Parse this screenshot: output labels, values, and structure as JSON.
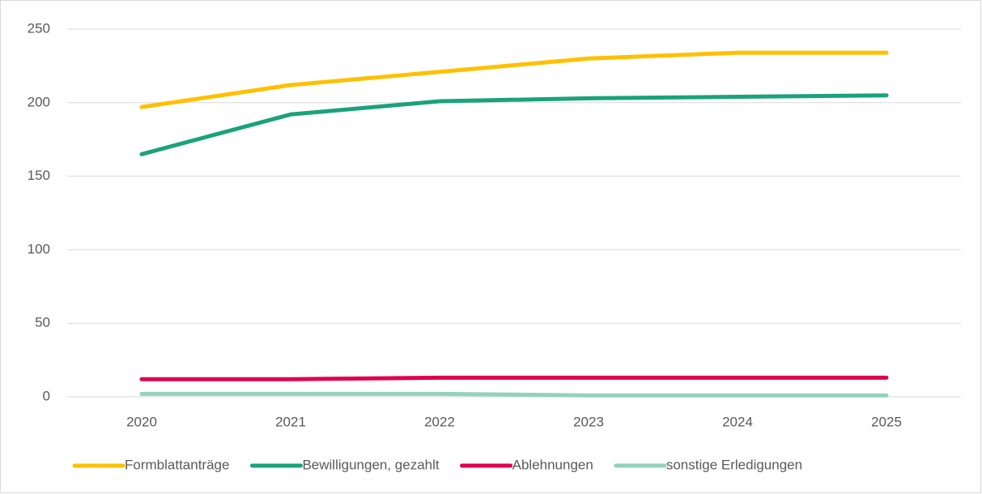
{
  "chart_data": {
    "type": "line",
    "categories": [
      "2020",
      "2021",
      "2022",
      "2023",
      "2024",
      "2025"
    ],
    "series": [
      {
        "name": "Formblattanträge",
        "color": "#ffc000",
        "values": [
          197,
          212,
          221,
          230,
          234,
          234
        ]
      },
      {
        "name": "Bewilligungen, gezahlt",
        "color": "#1aa37a",
        "values": [
          165,
          192,
          201,
          203,
          204,
          205
        ]
      },
      {
        "name": "Ablehnungen",
        "color": "#e0004d",
        "values": [
          12,
          12,
          13,
          13,
          13,
          13
        ]
      },
      {
        "name": "sonstige Erledigungen",
        "color": "#93d2bd",
        "values": [
          2,
          2,
          2,
          1,
          1,
          1
        ]
      }
    ],
    "ylim": [
      0,
      250
    ],
    "yticks": [
      0,
      50,
      100,
      150,
      200,
      250
    ],
    "grid": true,
    "legend": "bottom"
  }
}
